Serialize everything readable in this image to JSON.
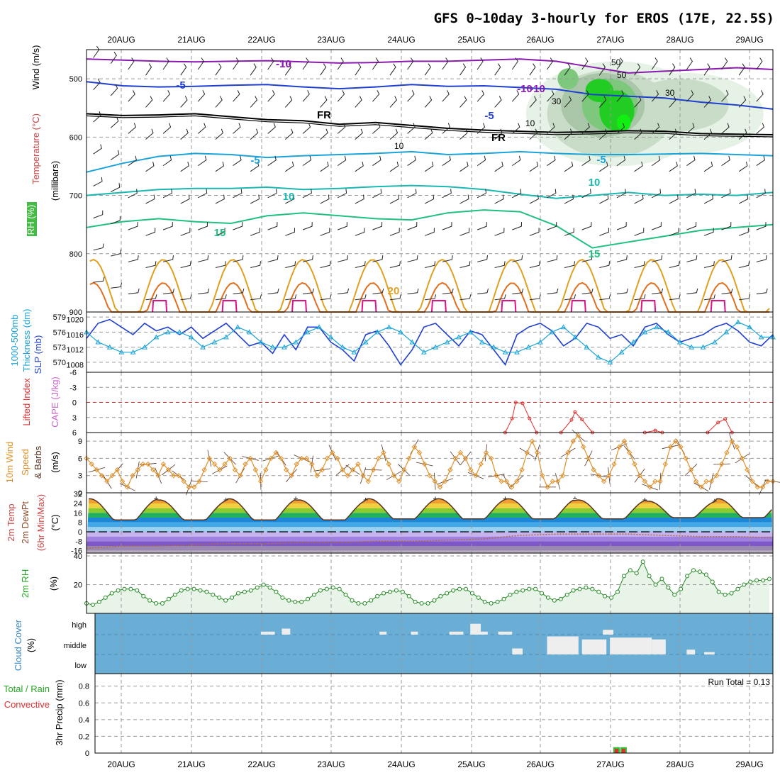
{
  "title": "GFS 0~10day 3-hourly for EROS (17E, 22.5S)",
  "chart_data": {
    "type": "meteogram",
    "x_dates": [
      "20AUG",
      "21AUG",
      "22AUG",
      "23AUG",
      "24AUG",
      "25AUG",
      "26AUG",
      "27AUG",
      "28AUG",
      "29AUG"
    ],
    "colors": {
      "purple": "#8a1ab0",
      "blue": "#1f3fd0",
      "cyan": "#1aa3d8",
      "teal": "#1ab8b0",
      "green": "#20c080",
      "gold": "#e0a020",
      "orange": "#e07020",
      "magenta": "#e0108a",
      "rh_green": "#22cc22",
      "cloud_blue": "#6aaed6",
      "rain_green": "#33bb33",
      "conv_red": "#e03030"
    },
    "panels": [
      {
        "id": "upper",
        "ylabel_parts": [
          "RH (%)",
          "Temperature (°C)",
          "Wind (m/s)",
          "(millibars)"
        ],
        "yticks": [
          "500",
          "600",
          "700",
          "800",
          "900"
        ],
        "ylim": [
          450,
          900
        ],
        "contour_labels": [
          "-10",
          "-10",
          "-5",
          "-5",
          "FR",
          "FR",
          "-5",
          "-5",
          "-10",
          "-10",
          "10",
          "10",
          "15",
          "15",
          "20"
        ],
        "rh_labels": [
          "50",
          "30",
          "10",
          "10",
          "30",
          "50"
        ],
        "isotherms": [
          {
            "name": "-10",
            "color": "purple",
            "y": [
              466,
              468,
              470,
              471,
              470,
              469,
              471,
              473,
              472,
              470,
              470,
              468,
              466,
              470,
              480,
              490,
              487,
              484,
              481,
              484
            ]
          },
          {
            "name": "-5",
            "color": "blue",
            "y": [
              505,
              512,
              514,
              513,
              511,
              510,
              514,
              517,
              514,
              510,
              513,
              512,
              515,
              518,
              527,
              530,
              533,
              540,
              545,
              552
            ]
          },
          {
            "name": "FR",
            "color": "black",
            "y": [
              560,
              563,
              562,
              560,
              565,
              570,
              572,
              578,
              575,
              580,
              585,
              588,
              590,
              592,
              591,
              589,
              590,
              594,
              595,
              596
            ]
          },
          {
            "name": "-5+",
            "color": "cyan",
            "y": [
              660,
              645,
              633,
              628,
              630,
              635,
              632,
              630,
              628,
              625,
              630,
              628,
              625,
              628,
              630,
              630,
              629,
              628,
              630,
              632
            ]
          },
          {
            "name": "10",
            "color": "teal",
            "y": [
              700,
              695,
              690,
              688,
              688,
              686,
              690,
              688,
              685,
              683,
              685,
              690,
              698,
              705,
              700,
              695,
              700,
              698,
              700,
              695
            ]
          },
          {
            "name": "15",
            "color": "green",
            "y": [
              755,
              745,
              740,
              745,
              748,
              735,
              730,
              735,
              740,
              742,
              730,
              725,
              728,
              752,
              790,
              780,
              770,
              760,
              755,
              750
            ]
          }
        ]
      },
      {
        "id": "thickness",
        "ylabel_parts": [
          "1000-500mb",
          "Thickness (dm)",
          "SLP (mb)"
        ],
        "yticks_left": [
          "579",
          "576",
          "573",
          "570"
        ],
        "yticks_right": [
          "1020",
          "1016",
          "1012",
          "1008"
        ],
        "left_range": [
          568,
          580
        ],
        "right_range": [
          1006,
          1022
        ],
        "slp": [
          1015,
          1019,
          1020,
          1018,
          1016,
          1019,
          1017,
          1018,
          1016,
          1018,
          1015,
          1017,
          1019,
          1016,
          1013,
          1014,
          1011,
          1016,
          1012,
          1018,
          1018,
          1014,
          1012,
          1009,
          1016,
          1017,
          1013,
          1008,
          1012,
          1018,
          1019,
          1016,
          1013,
          1017,
          1016,
          1012,
          1008,
          1016,
          1018,
          1019,
          1017,
          1013,
          1015,
          1019,
          1018,
          1015,
          1016,
          1013,
          1018,
          1019,
          1016,
          1014,
          1015,
          1016,
          1018,
          1019,
          1017,
          1014,
          1013,
          1016
        ],
        "thickness": [
          576,
          574,
          573,
          572,
          572,
          573,
          575,
          576,
          576,
          575,
          573,
          574,
          575,
          577,
          576,
          574,
          573,
          573,
          574,
          576,
          577,
          575,
          573,
          572,
          574,
          576,
          577,
          576,
          574,
          572,
          573,
          574,
          575,
          576,
          574,
          573,
          572,
          572,
          573,
          574,
          576,
          577,
          575,
          573,
          571,
          570,
          572,
          574,
          576,
          577,
          576,
          574,
          573,
          573,
          574,
          576,
          578,
          577,
          575,
          575
        ]
      },
      {
        "id": "cape",
        "ylabel_parts": [
          "Lifted Index",
          "CAPE (J/kg)"
        ],
        "yticks": [
          "-6",
          "-3",
          "0",
          "3",
          "6"
        ],
        "ylim": [
          -6,
          6
        ],
        "li": [
          {
            "x": 5.5,
            "v": 6.5
          },
          {
            "x": 5.6,
            "v": 3.2
          },
          {
            "x": 5.65,
            "v": 0.0
          },
          {
            "x": 5.75,
            "v": 0.2
          },
          {
            "x": 5.85,
            "v": 3.2
          },
          {
            "x": 5.95,
            "v": 6.3
          },
          {
            "x": 6.3,
            "v": 6.5
          },
          {
            "x": 6.45,
            "v": 3.5
          },
          {
            "x": 6.5,
            "v": 1.9
          },
          {
            "x": 6.6,
            "v": 3.4
          },
          {
            "x": 6.75,
            "v": 6.3
          },
          {
            "x": 7.5,
            "v": 6.5
          },
          {
            "x": 7.65,
            "v": 5.6
          },
          {
            "x": 7.75,
            "v": 6.5
          },
          {
            "x": 8.4,
            "v": 6.5
          },
          {
            "x": 8.55,
            "v": 4.0
          },
          {
            "x": 8.65,
            "v": 3.3
          },
          {
            "x": 8.75,
            "v": 6.5
          }
        ]
      },
      {
        "id": "wind10m",
        "ylabel_parts": [
          "10m Wind",
          "Speed",
          "& Barbs",
          "(m/s)"
        ],
        "yticks": [
          "9",
          "6",
          "3",
          "0"
        ],
        "ylim": [
          0,
          10.5
        ],
        "speed": [
          6,
          5,
          4,
          3,
          2,
          3,
          4,
          2,
          1,
          3,
          4,
          5,
          5,
          4,
          3,
          5,
          4,
          3,
          3,
          2,
          1,
          1,
          2,
          4,
          6,
          5,
          4,
          5,
          6,
          4,
          3,
          5,
          6,
          4,
          2,
          4,
          6,
          7,
          6,
          4,
          3,
          5,
          6,
          6,
          5,
          3,
          4,
          6,
          7,
          6,
          4,
          3,
          4,
          5,
          3,
          2,
          4,
          6,
          7,
          5,
          3,
          2,
          4,
          6,
          8,
          7,
          5,
          3,
          2,
          1,
          2,
          4,
          6,
          7,
          6,
          4,
          3,
          5,
          7,
          6,
          3,
          2,
          2,
          1,
          2,
          4,
          7,
          9,
          7,
          3,
          1,
          2,
          2,
          3,
          7,
          9,
          10,
          8,
          6,
          4,
          3,
          2,
          3,
          5,
          8,
          9,
          7,
          5,
          3,
          2,
          1,
          2,
          2,
          5,
          8,
          9,
          8,
          6,
          4,
          2,
          1,
          2,
          2,
          3,
          5,
          7,
          9,
          8,
          6,
          4,
          2,
          1,
          1,
          2,
          2
        ]
      },
      {
        "id": "temp2m",
        "ylabel_parts": [
          "2m Temp",
          "2m DewPt",
          "(6hr Min/Max)",
          "(°C)"
        ],
        "yticks": [
          "32",
          "24",
          "16",
          "8",
          "0",
          "-8",
          "-16"
        ],
        "ylim": [
          -18,
          33
        ],
        "temp_minmax": [
          [
            10,
            28
          ],
          [
            10,
            27
          ],
          [
            10,
            28
          ],
          [
            10,
            27
          ],
          [
            11,
            28
          ],
          [
            11,
            28
          ],
          [
            11,
            28
          ],
          [
            11,
            27
          ],
          [
            12,
            26
          ],
          [
            12,
            28
          ]
        ],
        "dewpoint": [
          -14,
          -12,
          -12,
          -11,
          -10,
          -10,
          -9,
          -9,
          -8,
          -8,
          -7,
          -6,
          -3,
          -2,
          -2,
          -2,
          -3,
          -4,
          -4,
          -5
        ]
      },
      {
        "id": "rh2m",
        "ylabel_parts": [
          "2m RH",
          "(%)"
        ],
        "yticks": [
          "40",
          "20"
        ],
        "ylim": [
          0,
          42
        ],
        "rh": [
          7,
          6,
          8,
          11,
          14,
          16,
          17,
          17,
          16,
          12,
          9,
          7,
          7,
          10,
          13,
          16,
          17,
          17,
          16,
          15,
          13,
          11,
          9,
          11,
          14,
          15,
          16,
          18,
          20,
          18,
          15,
          11,
          9,
          8,
          8,
          10,
          13,
          16,
          17,
          18,
          17,
          13,
          9,
          7,
          7,
          9,
          12,
          14,
          15,
          16,
          15,
          12,
          8,
          7,
          7,
          9,
          12,
          14,
          16,
          17,
          17,
          14,
          11,
          8,
          7,
          8,
          10,
          13,
          15,
          16,
          17,
          17,
          14,
          11,
          9,
          10,
          13,
          16,
          17,
          18,
          17,
          15,
          12,
          11,
          15,
          26,
          30,
          28,
          36,
          26,
          20,
          24,
          18,
          13,
          17,
          26,
          30,
          29,
          27,
          22,
          15,
          13,
          14,
          17,
          20,
          22,
          23,
          23,
          24
        ]
      },
      {
        "id": "cloud",
        "ylabel_parts": [
          "Cloud Cover",
          "(%)"
        ],
        "yticks": [
          "high",
          "middle",
          "low"
        ],
        "bars": [
          {
            "x": 2.3,
            "w": 0.12,
            "band": "high",
            "h": 0.1
          },
          {
            "x": 2.1,
            "w": 0.1,
            "band": "high",
            "h": 0.05
          },
          {
            "x": 2.0,
            "w": 0.1,
            "band": "high",
            "h": 0.05
          },
          {
            "x": 3.7,
            "w": 0.1,
            "band": "high",
            "h": 0.05
          },
          {
            "x": 4.15,
            "w": 0.1,
            "band": "high",
            "h": 0.05
          },
          {
            "x": 5.0,
            "w": 0.15,
            "band": "high",
            "h": 0.18
          },
          {
            "x": 5.15,
            "w": 0.1,
            "band": "high",
            "h": 0.05
          },
          {
            "x": 4.7,
            "w": 0.2,
            "band": "high",
            "h": 0.05
          },
          {
            "x": 5.4,
            "w": 0.2,
            "band": "high",
            "h": 0.05
          },
          {
            "x": 6.9,
            "w": 0.15,
            "band": "high",
            "h": 0.08
          },
          {
            "x": 5.6,
            "w": 0.15,
            "band": "middle",
            "h": 0.1
          },
          {
            "x": 6.1,
            "w": 0.45,
            "band": "middle",
            "h": 0.3
          },
          {
            "x": 6.6,
            "w": 0.35,
            "band": "middle",
            "h": 0.25
          },
          {
            "x": 7.0,
            "w": 0.6,
            "band": "middle",
            "h": 0.28
          },
          {
            "x": 7.6,
            "w": 0.2,
            "band": "middle",
            "h": 0.25
          },
          {
            "x": 8.1,
            "w": 0.12,
            "band": "middle",
            "h": 0.08
          },
          {
            "x": 8.35,
            "w": 0.15,
            "band": "middle",
            "h": 0.04
          }
        ]
      },
      {
        "id": "precip",
        "ylabel_parts": [
          "Total / Rain",
          "Convective",
          "3hr Precip (mm)"
        ],
        "yticks": [
          "0.8",
          "0.6",
          "0.4",
          "0.2",
          "0"
        ],
        "ylim": [
          0,
          0.95
        ],
        "run_total": "Run Total = 0.13",
        "bars": [
          {
            "x": 7.05,
            "total": 0.07,
            "conv": 0.05
          },
          {
            "x": 7.15,
            "total": 0.07,
            "conv": 0.05
          }
        ]
      }
    ]
  }
}
